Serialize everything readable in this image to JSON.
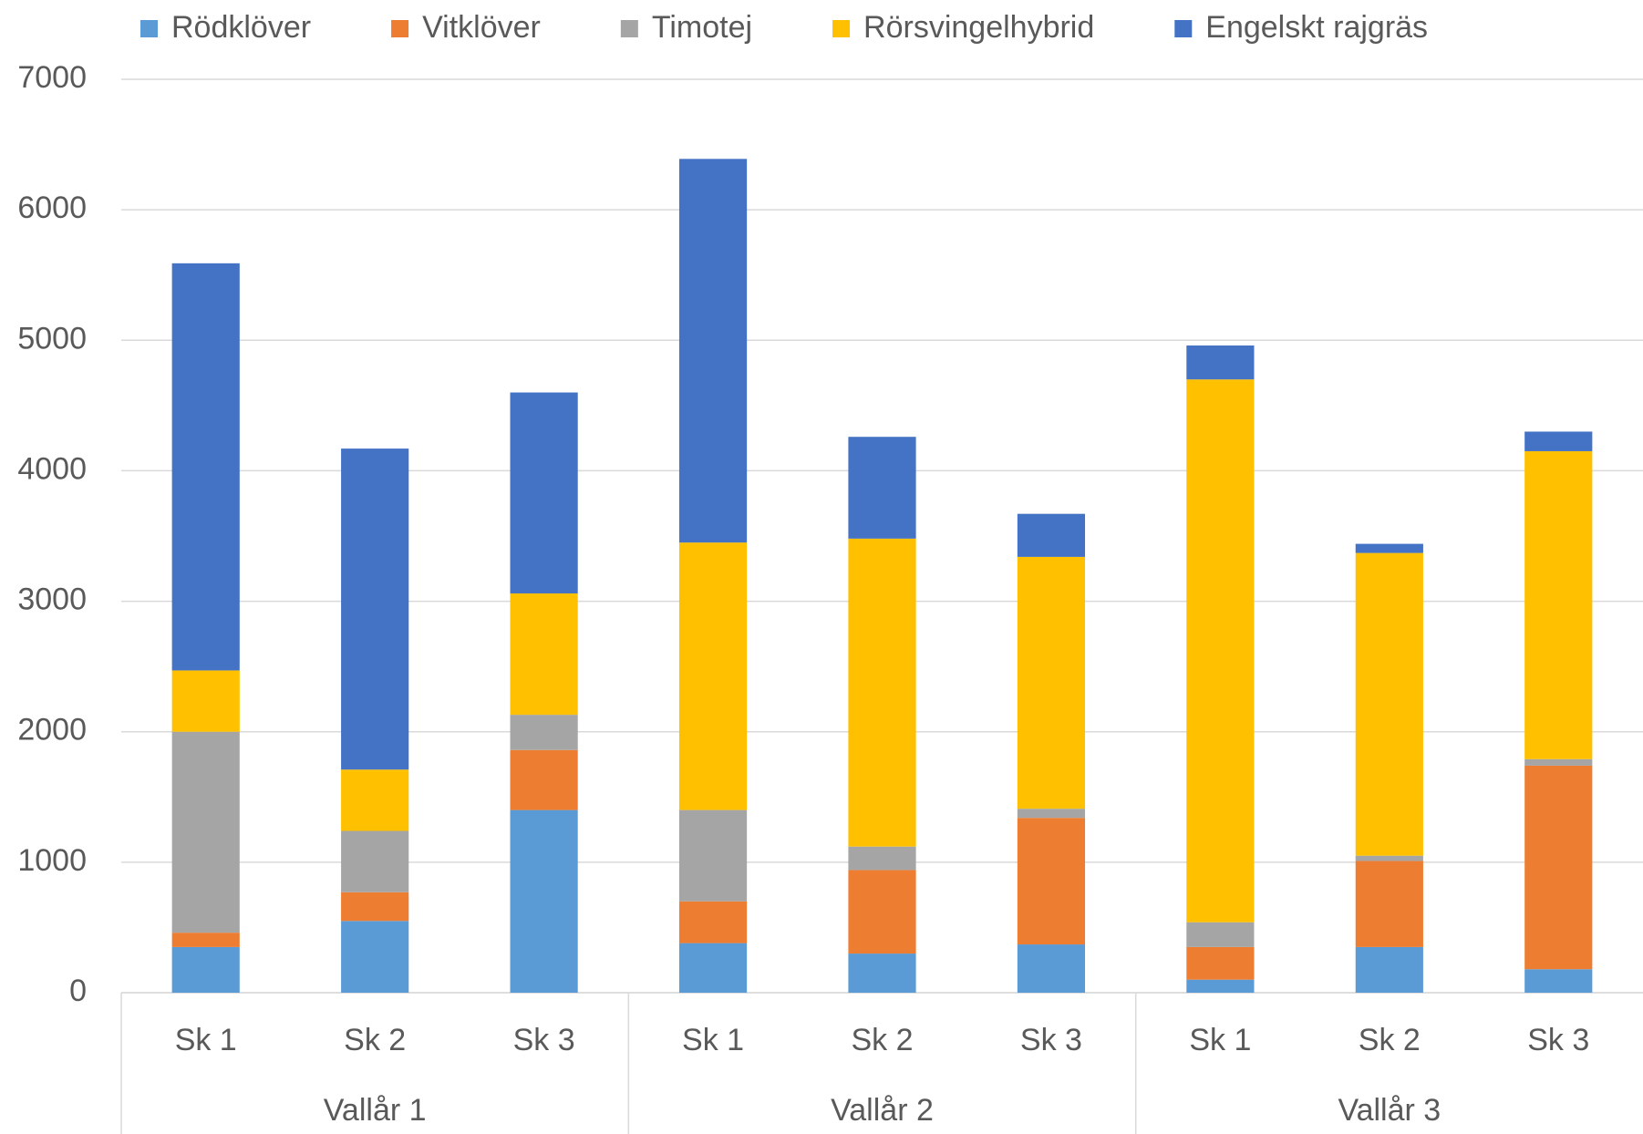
{
  "chart_data": {
    "type": "stacked_bar",
    "categories": [
      "Sk 1",
      "Sk 2",
      "Sk 3",
      "Sk 1",
      "Sk 2",
      "Sk 3",
      "Sk 1",
      "Sk 2",
      "Sk 3"
    ],
    "groups": [
      "Vallår 1",
      "Vallår 2",
      "Vallår 3"
    ],
    "series": [
      {
        "name": "Rödklöver",
        "color": "#5b9bd5",
        "values": [
          350,
          550,
          1400,
          380,
          300,
          370,
          100,
          350,
          180
        ]
      },
      {
        "name": "Vitklöver",
        "color": "#ed7d31",
        "values": [
          110,
          220,
          460,
          320,
          640,
          970,
          250,
          660,
          1560
        ]
      },
      {
        "name": "Timotej",
        "color": "#a5a5a5",
        "values": [
          1540,
          470,
          270,
          700,
          180,
          70,
          190,
          40,
          50
        ]
      },
      {
        "name": "Rörsvingelhybrid",
        "color": "#ffc000",
        "values": [
          470,
          470,
          930,
          2050,
          2360,
          1930,
          4160,
          2320,
          2360
        ]
      },
      {
        "name": "Engelskt rajgräs",
        "color": "#4472c4",
        "values": [
          3120,
          2460,
          1540,
          2940,
          780,
          330,
          260,
          70,
          150
        ]
      }
    ],
    "ylim": [
      0,
      7000
    ],
    "yticks": [
      0,
      1000,
      2000,
      3000,
      4000,
      5000,
      6000,
      7000
    ],
    "grid": true,
    "legend": "top"
  }
}
